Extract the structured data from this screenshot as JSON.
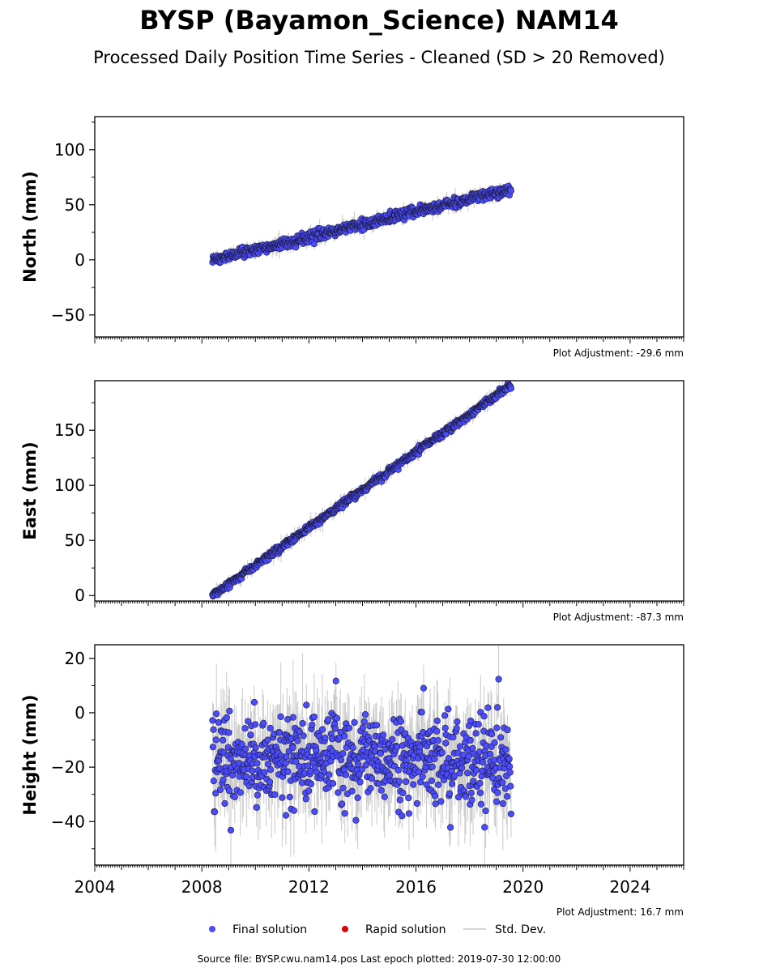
{
  "title": "BYSP (Bayamon_Science) NAM14",
  "subtitle": "Processed Daily Position Time Series - Cleaned (SD > 20 Removed)",
  "source_note": "Source file: BYSP.cwu.nam14.pos  Last epoch plotted: 2019-07-30 12:00:00",
  "colors": {
    "final": "#4b4bff",
    "rapid": "#dd0000",
    "stddev": "#c9c9c9",
    "edge": "#1a1a33"
  },
  "legend": [
    {
      "key": "final",
      "label": "Final solution"
    },
    {
      "key": "rapid",
      "label": "Rapid solution"
    },
    {
      "key": "stddev",
      "label": "Std. Dev."
    }
  ],
  "chart_data": [
    {
      "type": "scatter",
      "ylabel": "North (mm)",
      "adjustment": "Plot Adjustment: -29.6 mm",
      "xlim": [
        2004,
        2026
      ],
      "ylim": [
        -70,
        130
      ],
      "yticks": [
        -50,
        0,
        50,
        100
      ],
      "ytick_labels": [
        "−50",
        "0",
        "50",
        "100"
      ],
      "xticks": [
        2004,
        2008,
        2012,
        2016,
        2020,
        2024
      ],
      "xtick_labels": [],
      "series": [
        {
          "key": "final",
          "trend": {
            "x": [
              2008.4,
              2019.55
            ],
            "y": [
              0,
              64
            ]
          },
          "noise_sd": 2.2,
          "err_sd": 3
        }
      ]
    },
    {
      "type": "scatter",
      "ylabel": "East (mm)",
      "adjustment": "Plot Adjustment: -87.3 mm",
      "xlim": [
        2004,
        2026
      ],
      "ylim": [
        -5,
        195
      ],
      "yticks": [
        0,
        50,
        100,
        150
      ],
      "ytick_labels": [
        "0",
        "50",
        "100",
        "150"
      ],
      "xticks": [
        2004,
        2008,
        2012,
        2016,
        2020,
        2024
      ],
      "xtick_labels": [],
      "series": [
        {
          "key": "final",
          "trend": {
            "x": [
              2008.4,
              2019.55
            ],
            "y": [
              0,
              191
            ]
          },
          "noise_sd": 1.5,
          "err_sd": 3
        }
      ]
    },
    {
      "type": "scatter",
      "ylabel": "Height (mm)",
      "adjustment": "Plot Adjustment: 16.7 mm",
      "xlim": [
        2004,
        2026
      ],
      "ylim": [
        -56,
        25
      ],
      "yticks": [
        -40,
        -20,
        0,
        20
      ],
      "ytick_labels": [
        "−40",
        "−20",
        "0",
        "20"
      ],
      "xticks": [
        2004,
        2008,
        2012,
        2016,
        2020,
        2024
      ],
      "xtick_labels": [
        "2004",
        "2008",
        "2012",
        "2016",
        "2020",
        "2024"
      ],
      "series": [
        {
          "key": "final",
          "trend": {
            "x": [
              2008.4,
              2019.55
            ],
            "y": [
              -16,
              -18
            ]
          },
          "noise_sd": 8,
          "err_sd": 8
        }
      ]
    }
  ]
}
